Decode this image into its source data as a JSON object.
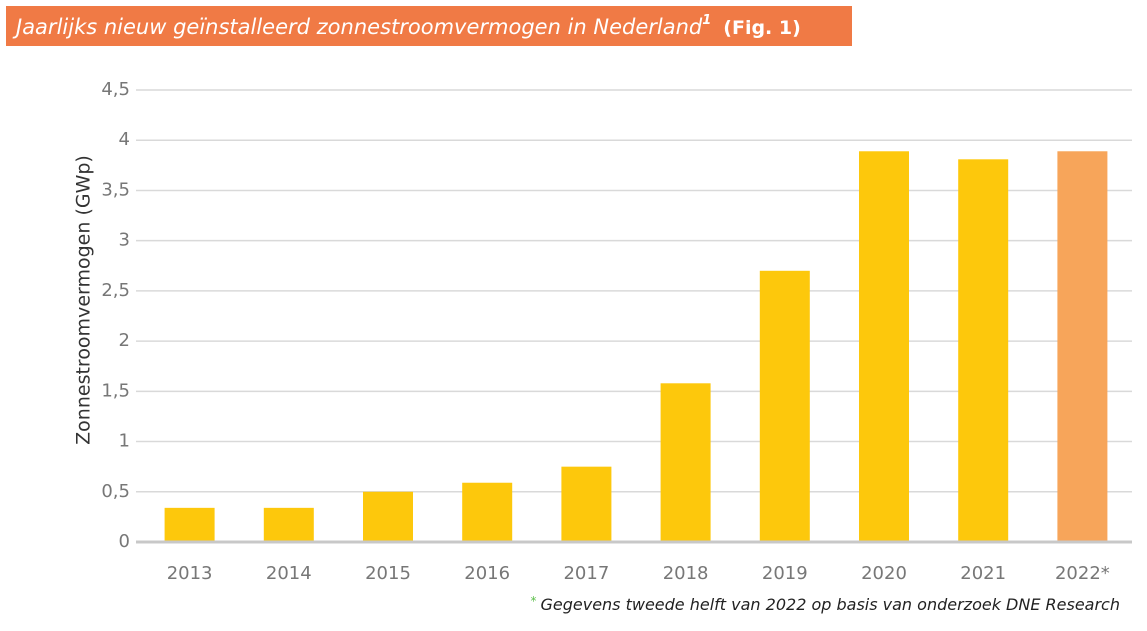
{
  "chart_data": {
    "type": "bar",
    "title": "Jaarlijks nieuw geïnstalleerd zonnestroomvermogen in Nederland",
    "title_superscript": "1",
    "figure_label": "(Fig. 1)",
    "y_label": "Zonnestroomvermogen (GWp)",
    "categories": [
      "2013",
      "2014",
      "2015",
      "2016",
      "2017",
      "2018",
      "2019",
      "2020",
      "2021",
      "2022*"
    ],
    "values": [
      0.34,
      0.34,
      0.5,
      0.59,
      0.75,
      1.58,
      2.7,
      3.89,
      3.81,
      3.89
    ],
    "colors": [
      "#fdc80c",
      "#fdc80c",
      "#fdc80c",
      "#fdc80c",
      "#fdc80c",
      "#fdc80c",
      "#fdc80c",
      "#fdc80c",
      "#fdc80c",
      "#f7a55a"
    ],
    "ylim": [
      0,
      4.5
    ],
    "yticks": [
      0,
      {
        "value": 0.5,
        "label": "0,5"
      },
      1,
      {
        "value": 1.5,
        "label": "1,5"
      },
      2,
      {
        "value": 2.5,
        "label": "2,5"
      },
      3,
      {
        "value": 3.5,
        "label": "3,5"
      },
      4,
      {
        "value": 4.5,
        "label": "4,5"
      }
    ],
    "grid": true,
    "footnote_marker": "*",
    "footnote": "Gegevens tweede helft van 2022 op basis van onderzoek DNE Research"
  }
}
